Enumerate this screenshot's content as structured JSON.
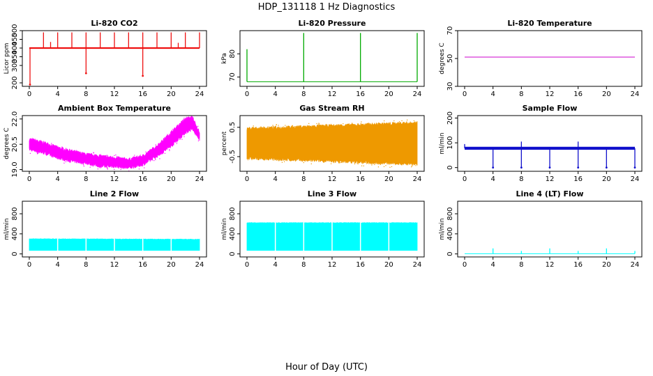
{
  "figure": {
    "title": "HDP_131118  1 Hz Diagnostics",
    "xlabel": "Hour of Day (UTC)"
  },
  "chart_data": [
    {
      "type": "line",
      "title": "Li-820 CO2",
      "ylabel": "Licor ppm",
      "color": "#ee1111",
      "xlim": [
        0,
        24
      ],
      "ylim": [
        180,
        500
      ],
      "xticks": [
        "0",
        "4",
        "8",
        "12",
        "16",
        "20",
        "24"
      ],
      "yticks": [
        "200",
        "300",
        "350",
        "400",
        "450",
        "500"
      ],
      "baseline": 400,
      "spikes_up": [
        [
          2,
          490
        ],
        [
          3,
          435
        ],
        [
          4,
          490
        ],
        [
          6,
          490
        ],
        [
          8,
          490
        ],
        [
          10,
          490
        ],
        [
          12,
          490
        ],
        [
          14,
          490
        ],
        [
          16,
          490
        ],
        [
          18,
          490
        ],
        [
          20,
          490
        ],
        [
          21,
          430
        ],
        [
          22,
          490
        ],
        [
          24,
          490
        ]
      ],
      "spikes_down": [
        [
          0.1,
          190
        ],
        [
          8,
          255
        ],
        [
          16,
          240
        ]
      ]
    },
    {
      "type": "line",
      "title": "Li-820 Pressure",
      "ylabel": "kPa",
      "color": "#00aa00",
      "xlim": [
        0,
        24
      ],
      "ylim": [
        66,
        90
      ],
      "xticks": [
        "0",
        "4",
        "8",
        "12",
        "16",
        "20",
        "24"
      ],
      "yticks": [
        "70",
        "80"
      ],
      "baseline": 68,
      "spikes_up": [
        [
          0,
          82
        ],
        [
          8,
          89
        ],
        [
          16,
          89
        ],
        [
          24,
          89
        ]
      ]
    },
    {
      "type": "line",
      "title": "Li-820 Temperature",
      "ylabel": "degrees C",
      "color": "#cc00cc",
      "xlim": [
        0,
        24
      ],
      "ylim": [
        30,
        70
      ],
      "xticks": [
        "0",
        "4",
        "8",
        "12",
        "16",
        "20",
        "24"
      ],
      "yticks": [
        "30",
        "50",
        "70"
      ],
      "baseline": 51
    },
    {
      "type": "area",
      "title": "Ambient Box Temperature",
      "ylabel": "degrees C",
      "color": "#ff00ff",
      "xlim": [
        0,
        24
      ],
      "ylim": [
        18.9,
        22.2
      ],
      "xticks": [
        "0",
        "4",
        "8",
        "12",
        "16",
        "20",
        "24"
      ],
      "yticks": [
        "19.0",
        "20.5",
        "22.0"
      ],
      "x": [
        0,
        2,
        4,
        6,
        8,
        10,
        12,
        14,
        16,
        18,
        20,
        22,
        23,
        24
      ],
      "upper": [
        20.8,
        20.6,
        20.3,
        20.1,
        19.9,
        19.8,
        19.7,
        19.6,
        19.8,
        20.4,
        21.2,
        22.0,
        22.1,
        21.2
      ],
      "lower": [
        20.2,
        20.0,
        19.7,
        19.5,
        19.4,
        19.2,
        19.2,
        19.1,
        19.3,
        19.8,
        20.4,
        21.2,
        21.4,
        20.8
      ]
    },
    {
      "type": "area",
      "title": "Gas Stream RH",
      "ylabel": "percent",
      "color": "#ee9900",
      "xlim": [
        0,
        24
      ],
      "ylim": [
        -1.0,
        0.9
      ],
      "xticks": [
        "0",
        "4",
        "8",
        "12",
        "16",
        "20",
        "24"
      ],
      "yticks": [
        "-0.5",
        "0.5"
      ],
      "x": [
        0,
        24
      ],
      "upper": [
        0.45,
        0.65
      ],
      "lower": [
        -0.55,
        -0.75
      ]
    },
    {
      "type": "line",
      "title": "Sample Flow",
      "ylabel": "ml/min",
      "color": "#1111cc",
      "xlim": [
        0,
        24
      ],
      "ylim": [
        -15,
        210
      ],
      "xticks": [
        "0",
        "4",
        "8",
        "12",
        "16",
        "20",
        "24"
      ],
      "yticks": [
        "0",
        "100",
        "200"
      ],
      "baseline": 78,
      "band": [
        72,
        84
      ],
      "spikes_down": [
        [
          4,
          0
        ],
        [
          8,
          0
        ],
        [
          12,
          0
        ],
        [
          16,
          0
        ],
        [
          20,
          0
        ],
        [
          24,
          0
        ]
      ],
      "spikes_up": [
        [
          8,
          105
        ],
        [
          16,
          105
        ],
        [
          0,
          95
        ]
      ]
    },
    {
      "type": "area",
      "title": "Line 2 Flow",
      "ylabel": "ml/min",
      "color": "#00ffff",
      "xlim": [
        0,
        24
      ],
      "ylim": [
        -60,
        1050
      ],
      "xticks": [
        "0",
        "4",
        "8",
        "12",
        "16",
        "20",
        "24"
      ],
      "yticks": [
        "0",
        "400",
        "800"
      ],
      "x": [
        0,
        24
      ],
      "upper": [
        300,
        290
      ],
      "lower": [
        70,
        70
      ],
      "gaps": [
        4,
        8,
        12,
        16,
        20
      ]
    },
    {
      "type": "area",
      "title": "Line 3 Flow",
      "ylabel": "ml/min",
      "color": "#00ffff",
      "xlim": [
        0,
        24
      ],
      "ylim": [
        -60,
        1050
      ],
      "xticks": [
        "0",
        "4",
        "8",
        "12",
        "16",
        "20",
        "24"
      ],
      "yticks": [
        "0",
        "400",
        "800"
      ],
      "x": [
        0,
        24
      ],
      "upper": [
        620,
        620
      ],
      "lower": [
        70,
        70
      ],
      "gaps": [
        4,
        8,
        12,
        16,
        20
      ]
    },
    {
      "type": "line",
      "title": "Line 4 (LT) Flow",
      "ylabel": "ml/min",
      "color": "#00ffff",
      "xlim": [
        0,
        24
      ],
      "ylim": [
        -60,
        1050
      ],
      "xticks": [
        "0",
        "4",
        "8",
        "12",
        "16",
        "20",
        "24"
      ],
      "yticks": [
        "0",
        "400",
        "800"
      ],
      "baseline": 5,
      "spikes_up": [
        [
          4,
          110
        ],
        [
          8,
          60
        ],
        [
          12,
          110
        ],
        [
          16,
          60
        ],
        [
          20,
          110
        ],
        [
          24,
          60
        ]
      ]
    }
  ]
}
